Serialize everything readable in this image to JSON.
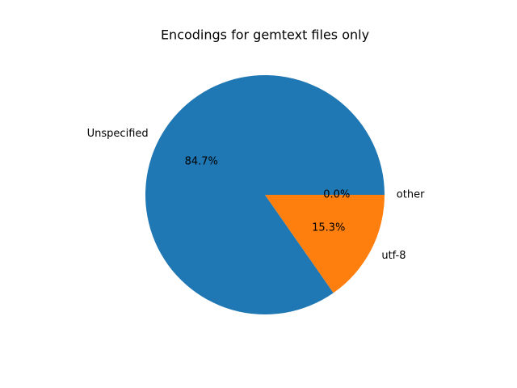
{
  "chart_data": {
    "type": "pie",
    "title": "Encodings for gemtext files only",
    "categories": [
      "Unspecified",
      "utf-8",
      "other"
    ],
    "values": [
      84.7,
      15.3,
      0.0
    ],
    "value_labels": [
      "84.7%",
      "15.3%",
      "0.0%"
    ],
    "colors": [
      "#1f77b4",
      "#ff7f0e",
      "#2ca02c"
    ]
  }
}
